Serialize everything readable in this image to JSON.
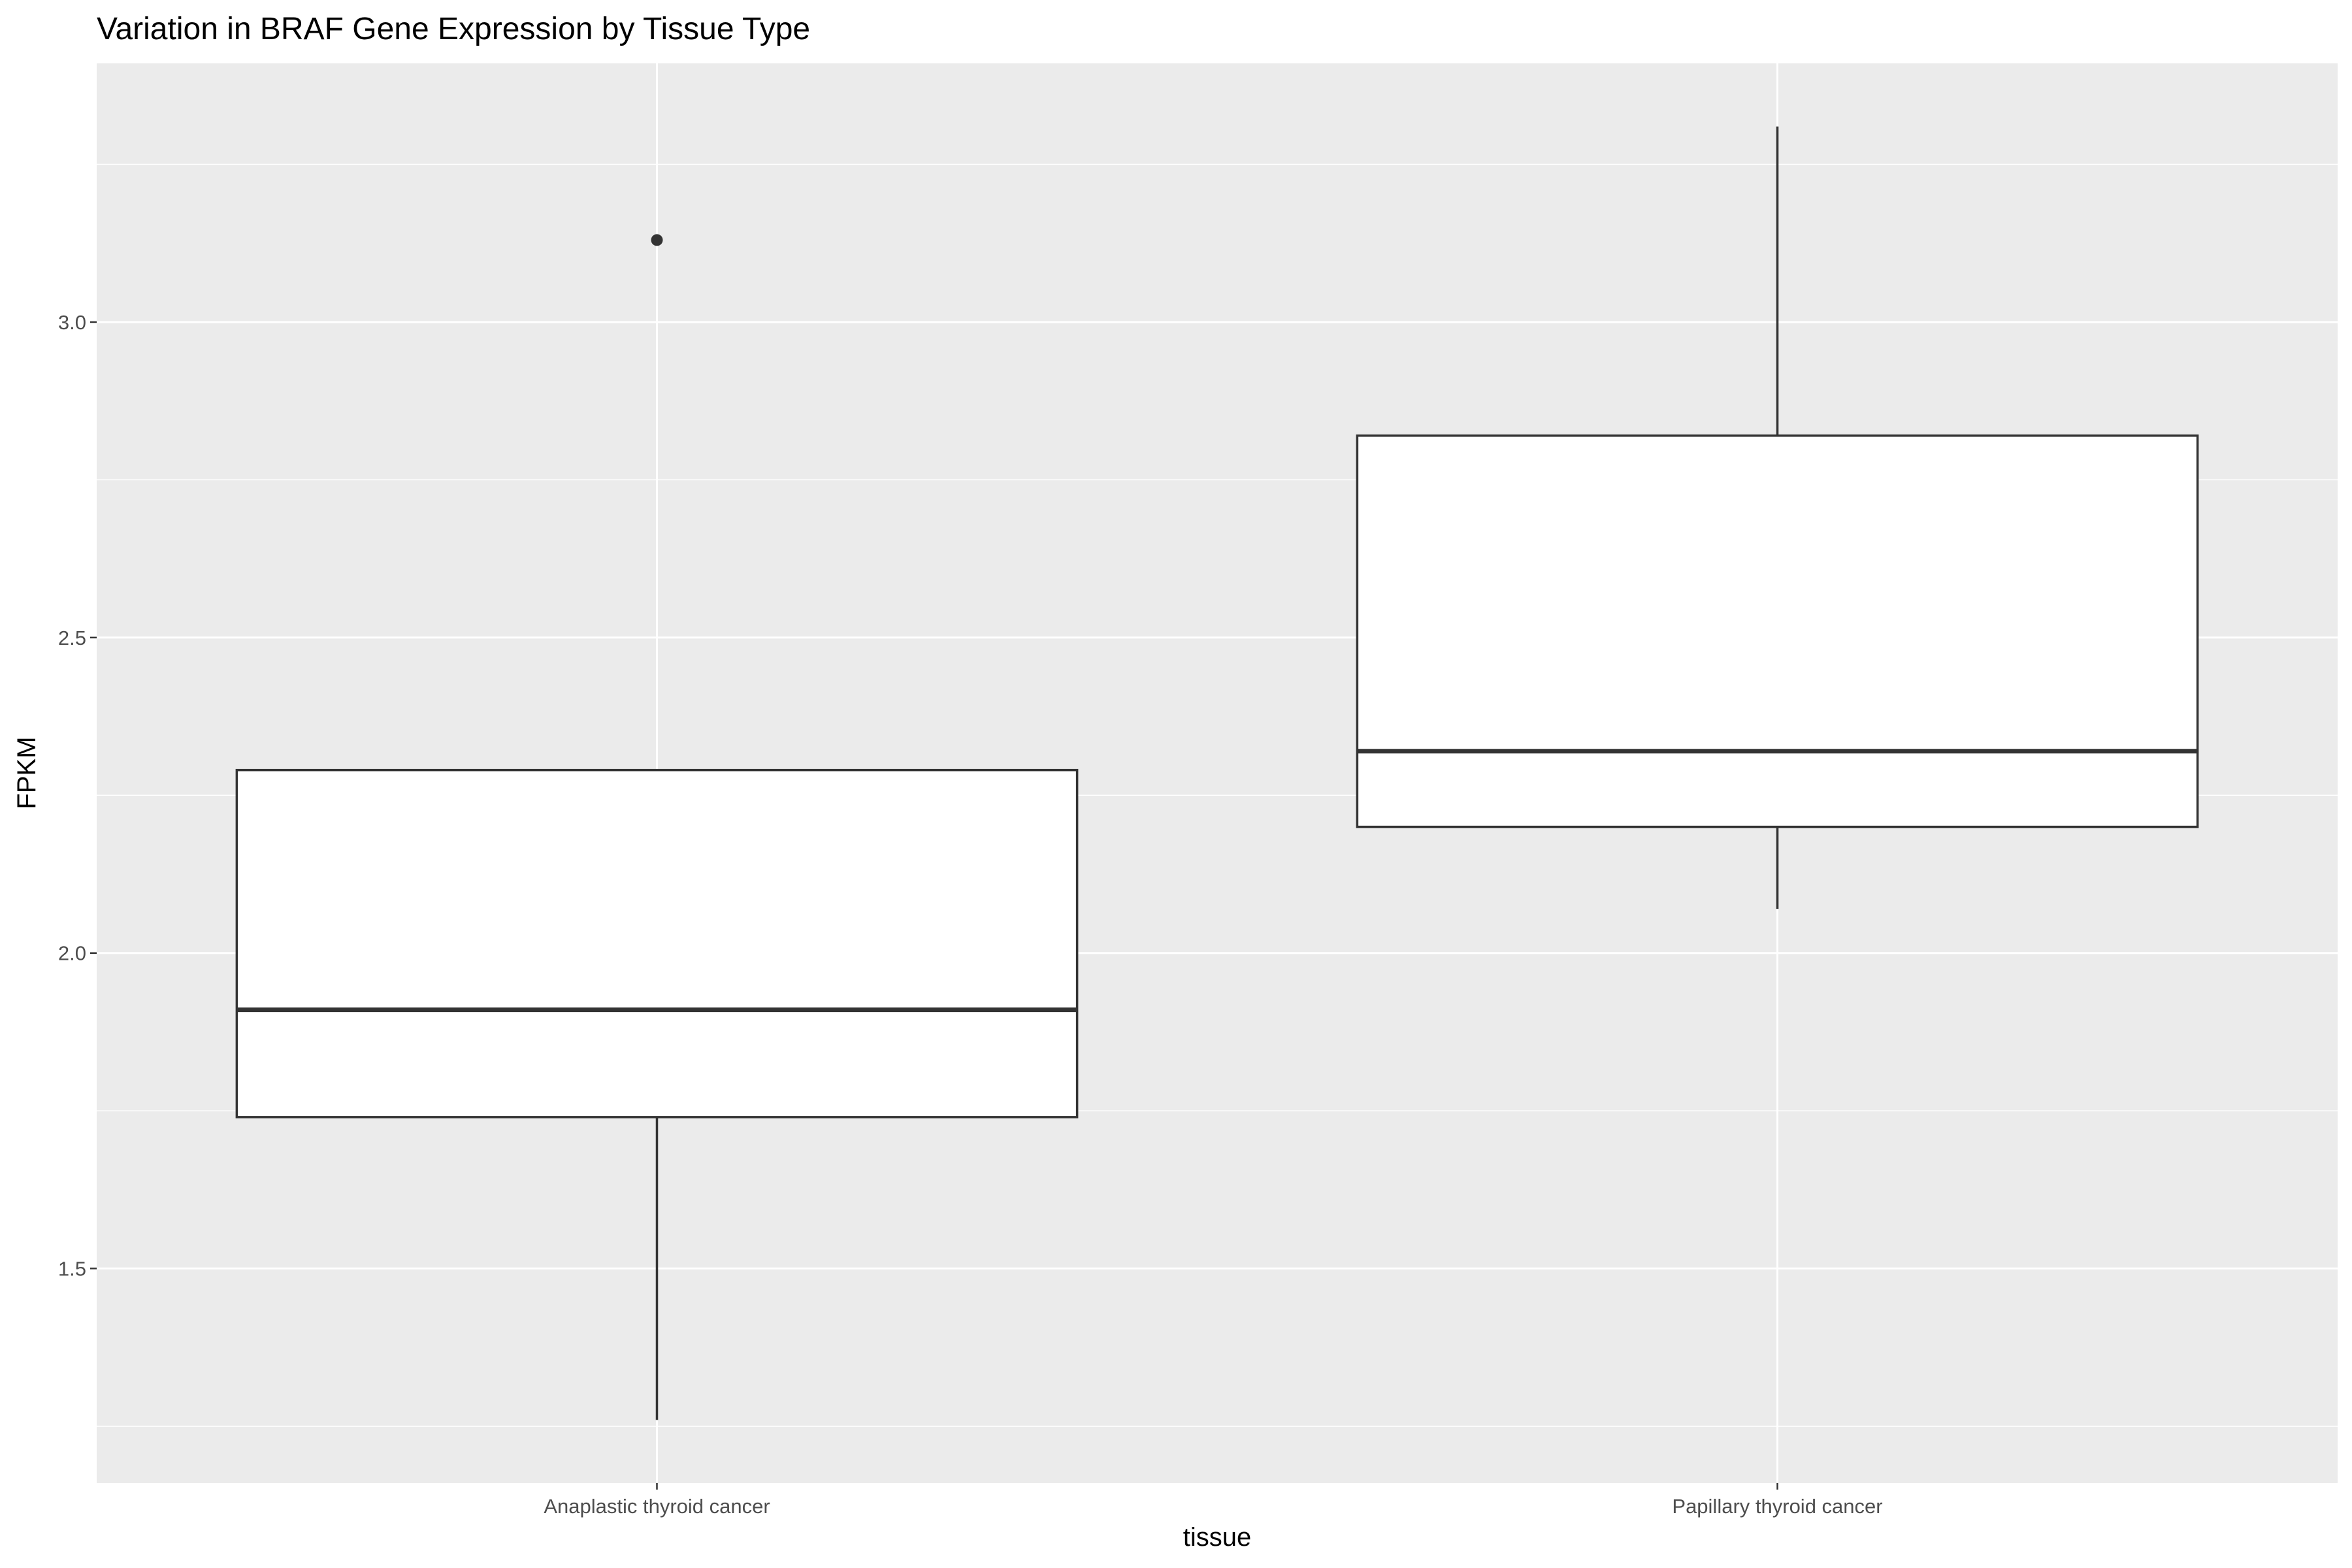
{
  "chart_data": {
    "type": "boxplot",
    "title": "Variation in BRAF Gene Expression by Tissue Type",
    "xlabel": "tissue",
    "ylabel": "FPKM",
    "categories": [
      "Anaplastic thyroid cancer",
      "Papillary thyroid cancer"
    ],
    "boxes": [
      {
        "category": "Anaplastic thyroid cancer",
        "whisker_low": 1.26,
        "q1": 1.74,
        "median": 1.91,
        "q3": 2.29,
        "whisker_high": 2.29,
        "outliers": [
          3.13
        ]
      },
      {
        "category": "Papillary thyroid cancer",
        "whisker_low": 2.07,
        "q1": 2.2,
        "median": 2.32,
        "q3": 2.82,
        "whisker_high": 3.31,
        "outliers": []
      }
    ],
    "y_ticks": [
      1.5,
      2.0,
      2.5,
      3.0
    ],
    "y_tick_labels": [
      "1.5",
      "2.0",
      "2.5",
      "3.0"
    ],
    "ylim": [
      1.16,
      3.41
    ],
    "grid": true,
    "legend": "none",
    "colors": {
      "panel_background": "#EBEBEB",
      "grid_line": "#FFFFFF",
      "box_fill": "#FFFFFF",
      "box_line": "#333333",
      "tick_label": "#4D4D4D"
    }
  }
}
